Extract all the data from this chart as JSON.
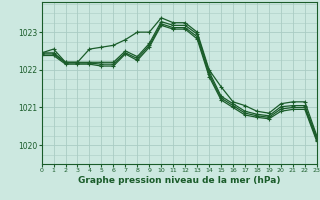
{
  "background_color": "#cce8e0",
  "grid_color": "#aaccc4",
  "line_color": "#1a5c2a",
  "title": "Graphe pression niveau de la mer (hPa)",
  "xlim": [
    0,
    23
  ],
  "ylim": [
    1019.5,
    1023.8
  ],
  "yticks": [
    1020,
    1021,
    1022,
    1023
  ],
  "xticks": [
    0,
    1,
    2,
    3,
    4,
    5,
    6,
    7,
    8,
    9,
    10,
    11,
    12,
    13,
    14,
    15,
    16,
    17,
    18,
    19,
    20,
    21,
    22,
    23
  ],
  "series": [
    {
      "x": [
        0,
        1,
        2,
        3,
        4,
        5,
        6,
        7,
        8,
        9,
        10,
        11,
        12,
        13,
        14,
        15,
        16,
        17,
        18,
        19,
        20,
        21,
        22,
        23
      ],
      "y": [
        1022.45,
        1022.55,
        1022.2,
        1022.2,
        1022.55,
        1022.6,
        1022.65,
        1022.8,
        1023.0,
        1023.0,
        1023.38,
        1023.25,
        1023.25,
        1023.0,
        1022.0,
        1021.55,
        1021.15,
        1021.05,
        1020.9,
        1020.85,
        1021.1,
        1021.15,
        1021.15,
        1020.25
      ]
    },
    {
      "x": [
        0,
        1,
        2,
        3,
        4,
        5,
        6,
        7,
        8,
        9,
        10,
        11,
        12,
        13,
        14,
        15,
        16,
        17,
        18,
        19,
        20,
        21,
        22,
        23
      ],
      "y": [
        1022.45,
        1022.45,
        1022.2,
        1022.2,
        1022.2,
        1022.2,
        1022.2,
        1022.5,
        1022.35,
        1022.7,
        1023.28,
        1023.18,
        1023.18,
        1022.95,
        1021.95,
        1021.3,
        1021.1,
        1020.9,
        1020.82,
        1020.78,
        1021.02,
        1021.05,
        1021.05,
        1020.2
      ]
    },
    {
      "x": [
        0,
        1,
        2,
        3,
        4,
        5,
        6,
        7,
        8,
        9,
        10,
        11,
        12,
        13,
        14,
        15,
        16,
        17,
        18,
        19,
        20,
        21,
        22,
        23
      ],
      "y": [
        1022.42,
        1022.42,
        1022.18,
        1022.18,
        1022.18,
        1022.15,
        1022.15,
        1022.45,
        1022.3,
        1022.65,
        1023.22,
        1023.12,
        1023.12,
        1022.88,
        1021.88,
        1021.25,
        1021.05,
        1020.85,
        1020.78,
        1020.74,
        1020.96,
        1021.0,
        1021.0,
        1020.15
      ]
    },
    {
      "x": [
        0,
        1,
        2,
        3,
        4,
        5,
        6,
        7,
        8,
        9,
        10,
        11,
        12,
        13,
        14,
        15,
        16,
        17,
        18,
        19,
        20,
        21,
        22,
        23
      ],
      "y": [
        1022.38,
        1022.38,
        1022.15,
        1022.15,
        1022.15,
        1022.1,
        1022.1,
        1022.42,
        1022.25,
        1022.6,
        1023.18,
        1023.08,
        1023.08,
        1022.82,
        1021.82,
        1021.2,
        1021.0,
        1020.8,
        1020.74,
        1020.7,
        1020.9,
        1020.95,
        1020.95,
        1020.1
      ]
    }
  ]
}
